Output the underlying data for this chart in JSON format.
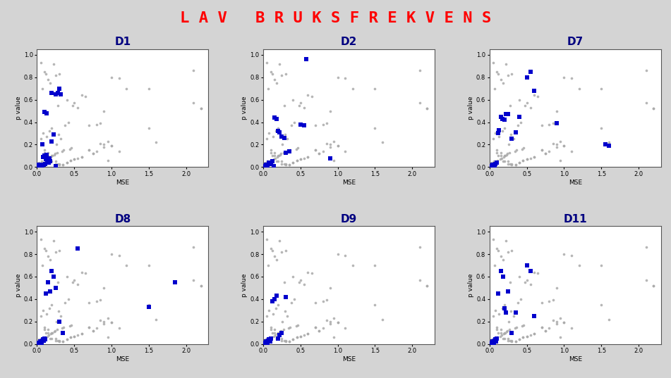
{
  "title": "L A V   B R U K S F R E K V E N S",
  "title_color": "#ff0000",
  "title_fontsize": 16,
  "background_color": "#d4d4d4",
  "subplot_bg": "#ffffff",
  "judges": [
    "D1",
    "D2",
    "D7",
    "D8",
    "D9",
    "D11"
  ],
  "xlabel": "MSE",
  "ylabel": "p value",
  "xlim": [
    0,
    2.3
  ],
  "ylim": [
    0,
    1.05
  ],
  "gray_color": "#aaaaaa",
  "blue_color": "#0000cc",
  "gray_x": [
    0.02,
    0.03,
    0.04,
    0.05,
    0.06,
    0.07,
    0.08,
    0.09,
    0.1,
    0.11,
    0.12,
    0.13,
    0.14,
    0.15,
    0.16,
    0.17,
    0.18,
    0.19,
    0.2,
    0.21,
    0.22,
    0.23,
    0.24,
    0.25,
    0.26,
    0.27,
    0.28,
    0.29,
    0.3,
    0.32,
    0.34,
    0.36,
    0.38,
    0.4,
    0.42,
    0.44,
    0.46,
    0.48,
    0.5,
    0.55,
    0.6,
    0.65,
    0.7,
    0.75,
    0.8,
    0.85,
    0.9,
    0.95,
    1.0,
    1.1,
    1.2,
    1.5,
    1.6,
    2.1,
    2.2,
    0.08,
    0.1,
    0.12,
    0.15,
    0.18,
    0.2,
    0.25,
    0.28,
    0.3,
    0.35,
    0.4,
    0.45,
    0.5,
    0.6,
    0.7,
    0.8,
    0.9,
    1.0,
    1.1,
    0.05,
    0.1,
    0.15,
    0.2,
    0.25,
    0.3,
    0.35,
    0.4,
    0.45,
    0.5,
    0.55,
    0.6,
    0.7,
    0.75,
    0.85,
    0.9,
    0.95,
    1.0,
    1.5,
    2.1,
    2.2
  ],
  "gray_y": [
    0.02,
    0.04,
    0.03,
    0.93,
    0.05,
    0.7,
    0.03,
    0.04,
    0.85,
    0.06,
    0.83,
    0.27,
    0.07,
    0.78,
    0.08,
    0.32,
    0.75,
    0.09,
    0.35,
    0.1,
    0.92,
    0.11,
    0.12,
    0.82,
    0.2,
    0.13,
    0.55,
    0.29,
    0.83,
    0.25,
    0.14,
    0.15,
    0.37,
    0.6,
    0.4,
    0.16,
    0.17,
    0.55,
    0.57,
    0.53,
    0.64,
    0.63,
    0.37,
    0.12,
    0.38,
    0.39,
    0.5,
    0.06,
    0.8,
    0.79,
    0.7,
    0.7,
    0.22,
    0.86,
    0.52,
    0.3,
    0.15,
    0.1,
    0.13,
    0.05,
    0.1,
    0.05,
    0.03,
    0.02,
    0.02,
    0.04,
    0.06,
    0.07,
    0.09,
    0.15,
    0.14,
    0.18,
    0.19,
    0.14,
    0.25,
    0.13,
    0.1,
    0.05,
    0.03,
    0.03,
    0.02,
    0.04,
    0.06,
    0.07,
    0.08,
    0.09,
    0.15,
    0.12,
    0.21,
    0.2,
    0.23,
    0.19,
    0.35,
    0.57,
    0.52
  ],
  "D1": {
    "blue_x": [
      0.02,
      0.03,
      0.04,
      0.05,
      0.06,
      0.07,
      0.08,
      0.09,
      0.1,
      0.11,
      0.12,
      0.13,
      0.14,
      0.15,
      0.16,
      0.17,
      0.18,
      0.2,
      0.22,
      0.25,
      0.28,
      0.1,
      0.13,
      0.07,
      0.25,
      0.3,
      0.32,
      0.2
    ],
    "blue_y": [
      0.01,
      0.02,
      0.01,
      0.01,
      0.02,
      0.01,
      0.09,
      0.02,
      0.1,
      0.03,
      0.07,
      0.11,
      0.04,
      0.05,
      0.04,
      0.08,
      0.05,
      0.23,
      0.29,
      0.65,
      0.66,
      0.49,
      0.48,
      0.2,
      0.01,
      0.7,
      0.65,
      0.66
    ]
  },
  "D2": {
    "blue_x": [
      0.02,
      0.04,
      0.05,
      0.06,
      0.08,
      0.1,
      0.12,
      0.14,
      0.15,
      0.18,
      0.2,
      0.22,
      0.25,
      0.28,
      0.3,
      0.35,
      0.5,
      0.55,
      0.58,
      0.9
    ],
    "blue_y": [
      0.01,
      0.02,
      0.02,
      0.01,
      0.04,
      0.03,
      0.05,
      0.01,
      0.44,
      0.43,
      0.32,
      0.31,
      0.27,
      0.26,
      0.13,
      0.14,
      0.38,
      0.37,
      0.96,
      0.08
    ]
  },
  "D7": {
    "blue_x": [
      0.02,
      0.03,
      0.04,
      0.05,
      0.06,
      0.07,
      0.08,
      0.1,
      0.12,
      0.13,
      0.15,
      0.17,
      0.2,
      0.22,
      0.25,
      0.3,
      0.35,
      0.4,
      0.5,
      0.55,
      0.6,
      0.9,
      1.55,
      1.6
    ],
    "blue_y": [
      0.01,
      0.01,
      0.02,
      0.02,
      0.01,
      0.01,
      0.03,
      0.04,
      0.3,
      0.33,
      0.45,
      0.43,
      0.42,
      0.47,
      0.47,
      0.25,
      0.31,
      0.45,
      0.8,
      0.85,
      0.68,
      0.39,
      0.2,
      0.19
    ]
  },
  "D8": {
    "blue_x": [
      0.02,
      0.03,
      0.04,
      0.05,
      0.06,
      0.07,
      0.08,
      0.09,
      0.1,
      0.11,
      0.12,
      0.15,
      0.18,
      0.2,
      0.22,
      0.25,
      0.3,
      0.35,
      0.55,
      1.5,
      1.85
    ],
    "blue_y": [
      0.01,
      0.01,
      0.02,
      0.02,
      0.01,
      0.03,
      0.04,
      0.03,
      0.05,
      0.04,
      0.45,
      0.55,
      0.47,
      0.65,
      0.6,
      0.5,
      0.2,
      0.1,
      0.85,
      0.33,
      0.55
    ]
  },
  "D9": {
    "blue_x": [
      0.02,
      0.03,
      0.04,
      0.05,
      0.06,
      0.07,
      0.08,
      0.09,
      0.1,
      0.12,
      0.15,
      0.18,
      0.2,
      0.22,
      0.25,
      0.3
    ],
    "blue_y": [
      0.01,
      0.01,
      0.02,
      0.02,
      0.01,
      0.03,
      0.04,
      0.02,
      0.05,
      0.38,
      0.4,
      0.43,
      0.05,
      0.08,
      0.1,
      0.42
    ]
  },
  "D11": {
    "blue_x": [
      0.02,
      0.03,
      0.04,
      0.05,
      0.06,
      0.07,
      0.08,
      0.09,
      0.1,
      0.12,
      0.15,
      0.18,
      0.2,
      0.22,
      0.25,
      0.3,
      0.35,
      0.5,
      0.55,
      0.6
    ],
    "blue_y": [
      0.01,
      0.01,
      0.02,
      0.02,
      0.01,
      0.03,
      0.04,
      0.02,
      0.05,
      0.45,
      0.65,
      0.6,
      0.32,
      0.28,
      0.47,
      0.1,
      0.28,
      0.7,
      0.65,
      0.25
    ]
  }
}
